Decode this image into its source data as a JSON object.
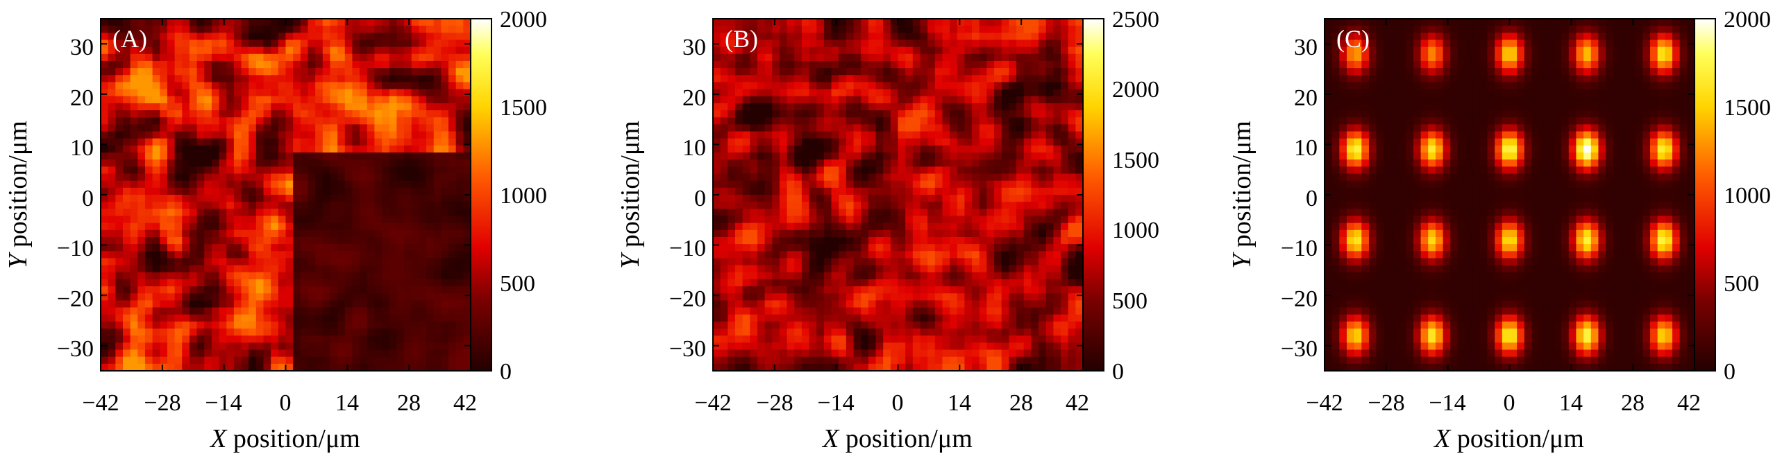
{
  "chart_data": [
    {
      "type": "heatmap",
      "panel_label": "(A)",
      "title": "",
      "xlabel_symbol": "X",
      "xlabel_text": " position/μm",
      "ylabel_symbol": "Y",
      "ylabel_text": " position/μm",
      "xlim": [
        -42,
        42
      ],
      "ylim": [
        -35,
        35
      ],
      "x_ticks": [
        "−42",
        "−28",
        "−14",
        "0",
        "14",
        "28",
        "42"
      ],
      "y_ticks": [
        "30",
        "20",
        "10",
        "0",
        "−10",
        "−20",
        "−30"
      ],
      "colorbar": {
        "min": 0,
        "max": 2000,
        "ticks": [
          "2000",
          "1500",
          "1000",
          "500",
          "0"
        ]
      },
      "pattern": "random speckle; dim (dark) region in lower-right quadrant",
      "intensity_range_estimate": [
        0,
        1300
      ]
    },
    {
      "type": "heatmap",
      "panel_label": "(B)",
      "title": "",
      "xlabel_symbol": "X",
      "xlabel_text": " position/μm",
      "ylabel_symbol": "Y",
      "ylabel_text": " position/μm",
      "xlim": [
        -42,
        42
      ],
      "ylim": [
        -35,
        35
      ],
      "x_ticks": [
        "−42",
        "−28",
        "−14",
        "0",
        "14",
        "28",
        "42"
      ],
      "y_ticks": [
        "30",
        "20",
        "10",
        "0",
        "−10",
        "−20",
        "−30"
      ],
      "colorbar": {
        "min": 0,
        "max": 2500,
        "ticks": [
          "2500",
          "2000",
          "1500",
          "1000",
          "500",
          "0"
        ]
      },
      "pattern": "uniform random speckle across the whole field",
      "intensity_range_estimate": [
        0,
        1300
      ]
    },
    {
      "type": "heatmap",
      "panel_label": "(C)",
      "title": "",
      "xlabel_symbol": "X",
      "xlabel_text": " position/μm",
      "ylabel_symbol": "Y",
      "ylabel_text": " position/μm",
      "xlim": [
        -42,
        42
      ],
      "ylim": [
        -35,
        35
      ],
      "x_ticks": [
        "−42",
        "−28",
        "−14",
        "0",
        "14",
        "28",
        "42"
      ],
      "y_ticks": [
        "30",
        "20",
        "10",
        "0",
        "−10",
        "−20",
        "−30"
      ],
      "colorbar": {
        "min": 0,
        "max": 2000,
        "ticks": [
          "2000",
          "1500",
          "1000",
          "500",
          "0"
        ]
      },
      "pattern": "5 x 4 array of bright focal spots on dark background",
      "spot_x": [
        -35,
        -17.5,
        0,
        17.5,
        35
      ],
      "spot_y": [
        28,
        9,
        -9,
        -28
      ],
      "spot_peak_intensity": [
        [
          1300,
          1200,
          1500,
          1400,
          1600
        ],
        [
          1700,
          1600,
          1750,
          2000,
          1650
        ],
        [
          1600,
          1500,
          1550,
          1650,
          1700
        ],
        [
          1500,
          1600,
          1650,
          1700,
          1500
        ]
      ]
    }
  ]
}
